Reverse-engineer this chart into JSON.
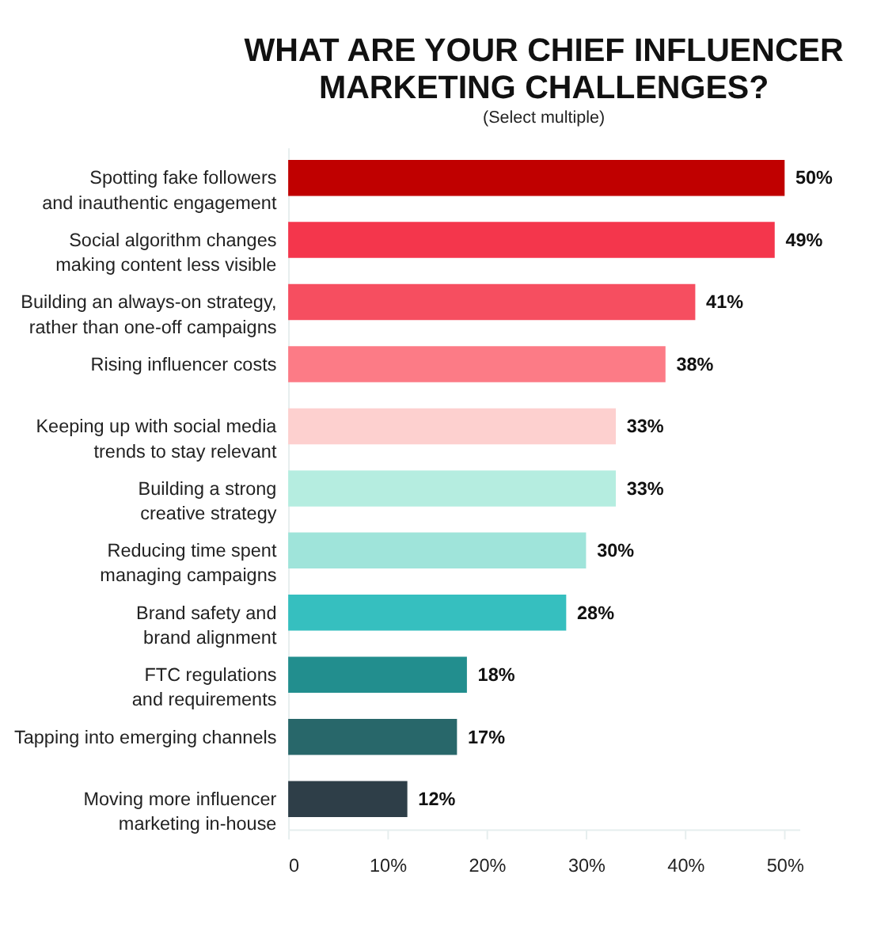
{
  "chart_data": {
    "type": "bar",
    "orientation": "horizontal",
    "title": "WHAT ARE YOUR CHIEF INFLUENCER MARKETING CHALLENGES?",
    "subtitle": "(Select multiple)",
    "categories": [
      "Spotting fake followers and inauthentic engagement",
      "Social algorithm changes making content less visible",
      "Building an always-on strategy, rather than one-off campaigns",
      "Rising influencer costs",
      "Keeping up with social media trends to stay relevant",
      "Building a strong creative strategy",
      "Reducing time spent managing campaigns",
      "Brand safety and brand alignment",
      "FTC regulations and requirements",
      "Tapping into emerging channels",
      "Moving more influencer marketing in-house"
    ],
    "values": [
      50,
      49,
      41,
      38,
      33,
      33,
      30,
      28,
      18,
      17,
      12
    ],
    "value_labels": [
      "50%",
      "49%",
      "41%",
      "38%",
      "33%",
      "33%",
      "30%",
      "28%",
      "18%",
      "17%",
      "12%"
    ],
    "colors": [
      "#c00000",
      "#f4364c",
      "#f64e60",
      "#fc7b86",
      "#fdd0cf",
      "#b5ede0",
      "#9fe4da",
      "#36bfbf",
      "#228e8e",
      "#28676a",
      "#2e3e48"
    ],
    "xlim": [
      0,
      51.5
    ],
    "xticks": [
      0,
      {
        "value": 10,
        "label": "10%"
      },
      {
        "value": 20,
        "label": "20%"
      },
      {
        "value": 30,
        "label": "30%"
      },
      {
        "value": 40,
        "label": "40%"
      },
      {
        "value": 50,
        "label": "50%"
      }
    ],
    "grid": false
  }
}
